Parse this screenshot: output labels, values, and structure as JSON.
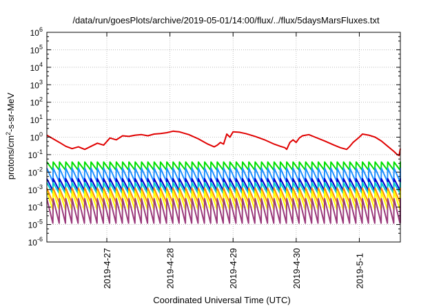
{
  "chart_data": {
    "type": "line",
    "title": "/data/run/goesPlots/archive/2019-05-01/14:00/flux/../flux/5daysMarsFluxes.txt",
    "xlabel": "Coordinated Universal Time (UTC)",
    "ylabel_prefix": "protons/cm",
    "ylabel_sup": "2",
    "ylabel_suffix": "-s-sr-MeV",
    "yscale": "log",
    "ylim": [
      1e-06,
      1000000.0
    ],
    "xlim_days": [
      -0.95,
      4.65
    ],
    "grid": true,
    "legend": "none",
    "x_ticks": [
      {
        "day": 0,
        "label": "2019-4-27"
      },
      {
        "day": 1,
        "label": "2019-4-28"
      },
      {
        "day": 2,
        "label": "2019-4-29"
      },
      {
        "day": 3,
        "label": "2019-4-30"
      },
      {
        "day": 4,
        "label": "2019-5-1"
      }
    ],
    "y_ticks": [
      {
        "exp": -6,
        "base": "10",
        "sup": "-6"
      },
      {
        "exp": -5,
        "base": "10",
        "sup": "-5"
      },
      {
        "exp": -4,
        "base": "10",
        "sup": "-4"
      },
      {
        "exp": -3,
        "base": "10",
        "sup": "-3"
      },
      {
        "exp": -2,
        "base": "10",
        "sup": "-2"
      },
      {
        "exp": -1,
        "base": "10",
        "sup": "-1"
      },
      {
        "exp": 0,
        "base": "10",
        "sup": "0"
      },
      {
        "exp": 1,
        "base": "10",
        "sup": "1"
      },
      {
        "exp": 2,
        "base": "10",
        "sup": "2"
      },
      {
        "exp": 3,
        "base": "10",
        "sup": "3"
      },
      {
        "exp": 4,
        "base": "10",
        "sup": "4"
      },
      {
        "exp": 5,
        "base": "10",
        "sup": "5"
      },
      {
        "exp": 6,
        "base": "10",
        "sup": "6"
      }
    ],
    "series": [
      {
        "color": "#e00000",
        "points": [
          [
            -0.95,
            1.3
          ],
          [
            -0.85,
            0.8
          ],
          [
            -0.75,
            0.5
          ],
          [
            -0.65,
            0.3
          ],
          [
            -0.55,
            0.22
          ],
          [
            -0.45,
            0.28
          ],
          [
            -0.35,
            0.2
          ],
          [
            -0.25,
            0.3
          ],
          [
            -0.15,
            0.45
          ],
          [
            -0.05,
            0.35
          ],
          [
            0.05,
            0.9
          ],
          [
            0.15,
            0.7
          ],
          [
            0.25,
            1.2
          ],
          [
            0.35,
            1.1
          ],
          [
            0.45,
            1.3
          ],
          [
            0.55,
            1.4
          ],
          [
            0.65,
            1.2
          ],
          [
            0.75,
            1.5
          ],
          [
            0.85,
            1.6
          ],
          [
            0.95,
            1.8
          ],
          [
            1.05,
            2.2
          ],
          [
            1.15,
            2.0
          ],
          [
            1.3,
            1.4
          ],
          [
            1.45,
            0.8
          ],
          [
            1.6,
            0.4
          ],
          [
            1.7,
            0.28
          ],
          [
            1.75,
            0.35
          ],
          [
            1.8,
            0.5
          ],
          [
            1.85,
            0.4
          ],
          [
            1.9,
            1.5
          ],
          [
            1.95,
            1.0
          ],
          [
            2.0,
            2.0
          ],
          [
            2.1,
            1.9
          ],
          [
            2.2,
            1.6
          ],
          [
            2.35,
            1.1
          ],
          [
            2.5,
            0.7
          ],
          [
            2.65,
            0.4
          ],
          [
            2.75,
            0.3
          ],
          [
            2.82,
            0.25
          ],
          [
            2.85,
            0.2
          ],
          [
            2.9,
            0.5
          ],
          [
            2.95,
            0.7
          ],
          [
            3.0,
            0.5
          ],
          [
            3.05,
            0.9
          ],
          [
            3.1,
            1.2
          ],
          [
            3.15,
            1.3
          ],
          [
            3.2,
            1.4
          ],
          [
            3.3,
            1.0
          ],
          [
            3.45,
            0.6
          ],
          [
            3.6,
            0.35
          ],
          [
            3.7,
            0.25
          ],
          [
            3.8,
            0.2
          ],
          [
            3.85,
            0.3
          ],
          [
            3.9,
            0.5
          ],
          [
            3.95,
            0.7
          ],
          [
            4.0,
            1.0
          ],
          [
            4.05,
            1.5
          ],
          [
            4.15,
            1.3
          ],
          [
            4.25,
            1.0
          ],
          [
            4.35,
            0.6
          ],
          [
            4.45,
            0.3
          ],
          [
            4.55,
            0.15
          ],
          [
            4.6,
            0.1
          ],
          [
            4.63,
            0.09
          ],
          [
            4.65,
            0.22
          ]
        ]
      },
      {
        "color": "#00e000",
        "sawtooth": {
          "start": -0.95,
          "end": 4.65,
          "period": 0.1,
          "low": 0.013,
          "high": 0.038
        }
      },
      {
        "color": "#1e90ff",
        "sawtooth": {
          "start": -0.95,
          "end": 4.65,
          "period": 0.1,
          "low": 0.0028,
          "high": 0.017
        }
      },
      {
        "color": "#0000cd",
        "sawtooth": {
          "start": -0.95,
          "end": 4.65,
          "period": 0.1,
          "low": 0.0009,
          "high": 0.0042
        }
      },
      {
        "color": "#00ced1",
        "sawtooth": {
          "start": -0.95,
          "end": 4.65,
          "period": 0.1,
          "low": 0.0006,
          "high": 0.0025
        }
      },
      {
        "color": "#ff8c00",
        "sawtooth": {
          "start": -0.95,
          "end": 4.65,
          "period": 0.1,
          "low": 0.00018,
          "high": 0.0012
        }
      },
      {
        "color": "#ffff00",
        "sawtooth": {
          "start": -0.95,
          "end": 4.65,
          "period": 0.1,
          "low": 7e-05,
          "high": 0.0008
        }
      },
      {
        "color": "#9b3a7c",
        "sawtooth": {
          "start": -0.95,
          "end": 4.65,
          "period": 0.1,
          "low": 1.2e-05,
          "high": 0.0003
        }
      }
    ]
  }
}
